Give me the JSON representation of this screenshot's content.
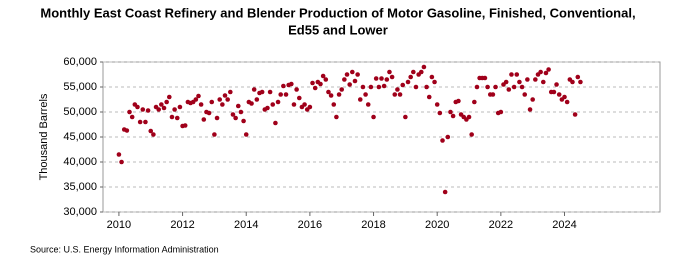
{
  "chart_data": {
    "type": "scatter",
    "title": [
      "Monthly East Coast Refinery and Blender Production of Motor Gasoline, Finished, Conventional,",
      "Ed55 and Lower"
    ],
    "y_label": "Thousand Barrels",
    "source": "Source: U.S. Energy Information Administration",
    "color": "#a0001a",
    "grid": true,
    "xlim": [
      2009.5,
      2027
    ],
    "xticks": [
      2010,
      2012,
      2014,
      2016,
      2018,
      2020,
      2022,
      2024
    ],
    "ylim": [
      30000,
      60000
    ],
    "yticks": [
      {
        "value": 30000,
        "label": "30,000"
      },
      {
        "value": 35000,
        "label": "35,000"
      },
      {
        "value": 40000,
        "label": "40,000"
      },
      {
        "value": 45000,
        "label": "45,000"
      },
      {
        "value": 50000,
        "label": "50,000"
      },
      {
        "value": 55000,
        "label": "55,000"
      },
      {
        "value": 60000,
        "label": "60,000"
      }
    ],
    "x": [
      2010,
      2010.083,
      2010.167,
      2010.25,
      2010.333,
      2010.417,
      2010.5,
      2010.583,
      2010.667,
      2010.75,
      2010.833,
      2010.917,
      2011,
      2011.083,
      2011.167,
      2011.25,
      2011.333,
      2011.417,
      2011.5,
      2011.583,
      2011.667,
      2011.75,
      2011.833,
      2011.917,
      2012,
      2012.083,
      2012.167,
      2012.25,
      2012.333,
      2012.417,
      2012.5,
      2012.583,
      2012.667,
      2012.75,
      2012.833,
      2012.917,
      2013,
      2013.083,
      2013.167,
      2013.25,
      2013.333,
      2013.417,
      2013.5,
      2013.583,
      2013.667,
      2013.75,
      2013.833,
      2013.917,
      2014,
      2014.083,
      2014.167,
      2014.25,
      2014.333,
      2014.417,
      2014.5,
      2014.583,
      2014.667,
      2014.75,
      2014.833,
      2014.917,
      2015,
      2015.083,
      2015.167,
      2015.25,
      2015.333,
      2015.417,
      2015.5,
      2015.583,
      2015.667,
      2015.75,
      2015.833,
      2015.917,
      2016,
      2016.083,
      2016.167,
      2016.25,
      2016.333,
      2016.417,
      2016.5,
      2016.583,
      2016.667,
      2016.75,
      2016.833,
      2016.917,
      2017,
      2017.083,
      2017.167,
      2017.25,
      2017.333,
      2017.417,
      2017.5,
      2017.583,
      2017.667,
      2017.75,
      2017.833,
      2017.917,
      2018,
      2018.083,
      2018.167,
      2018.25,
      2018.333,
      2018.417,
      2018.5,
      2018.583,
      2018.667,
      2018.75,
      2018.833,
      2018.917,
      2019,
      2019.083,
      2019.167,
      2019.25,
      2019.333,
      2019.417,
      2019.5,
      2019.583,
      2019.667,
      2019.75,
      2019.833,
      2019.917,
      2020,
      2020.083,
      2020.167,
      2020.25,
      2020.333,
      2020.417,
      2020.5,
      2020.583,
      2020.667,
      2020.75,
      2020.833,
      2020.917,
      2021,
      2021.083,
      2021.167,
      2021.25,
      2021.333,
      2021.417,
      2021.5,
      2021.583,
      2021.667,
      2021.75,
      2021.833,
      2021.917,
      2022,
      2022.083,
      2022.167,
      2022.25,
      2022.333,
      2022.417,
      2022.5,
      2022.583,
      2022.667,
      2022.75,
      2022.833,
      2022.917,
      2023,
      2023.083,
      2023.167,
      2023.25,
      2023.333,
      2023.417,
      2023.5,
      2023.583,
      2023.667,
      2023.75,
      2023.833,
      2023.917,
      2024,
      2024.083,
      2024.167,
      2024.25,
      2024.333,
      2024.417,
      2024.5
    ],
    "values": [
      41500,
      40000,
      46500,
      46300,
      50000,
      49000,
      51500,
      51000,
      48000,
      50500,
      48000,
      50300,
      46200,
      45500,
      51000,
      50500,
      51500,
      50800,
      52000,
      53000,
      49000,
      50500,
      48800,
      51000,
      47200,
      47300,
      52000,
      51800,
      52000,
      52500,
      53200,
      51500,
      48500,
      50000,
      49800,
      52000,
      45500,
      48800,
      52500,
      51500,
      53300,
      52500,
      54000,
      49500,
      48800,
      51200,
      50000,
      48200,
      45500,
      52000,
      51700,
      54500,
      52500,
      53800,
      54000,
      50500,
      50800,
      54000,
      51500,
      47800,
      52000,
      53500,
      55200,
      53500,
      55400,
      55600,
      51500,
      54500,
      52800,
      51000,
      51500,
      50500,
      51000,
      55800,
      54800,
      56000,
      55600,
      57200,
      56500,
      54000,
      53300,
      51500,
      49000,
      53500,
      54500,
      56500,
      57500,
      55500,
      58000,
      56200,
      57500,
      52500,
      55000,
      53500,
      51500,
      55000,
      49000,
      56700,
      55000,
      56700,
      55200,
      56500,
      58000,
      57000,
      53500,
      54500,
      53500,
      55400,
      49000,
      56000,
      57000,
      58000,
      55000,
      57500,
      58000,
      59000,
      55000,
      53000,
      57000,
      56000,
      51500,
      49800,
      44300,
      34000,
      45000,
      50000,
      49200,
      52000,
      52200,
      49500,
      49000,
      48500,
      49000,
      45500,
      52000,
      55000,
      56800,
      56800,
      56800,
      55000,
      53500,
      53500,
      55000,
      49800,
      50000,
      55500,
      56000,
      54500,
      57500,
      55000,
      57500,
      56000,
      55000,
      53500,
      56500,
      50500,
      52500,
      56500,
      57500,
      58000,
      56000,
      57800,
      58500,
      54000,
      54000,
      55500,
      53500,
      52500,
      53000,
      52000,
      56500,
      56000,
      49500,
      57000,
      56000
    ]
  }
}
